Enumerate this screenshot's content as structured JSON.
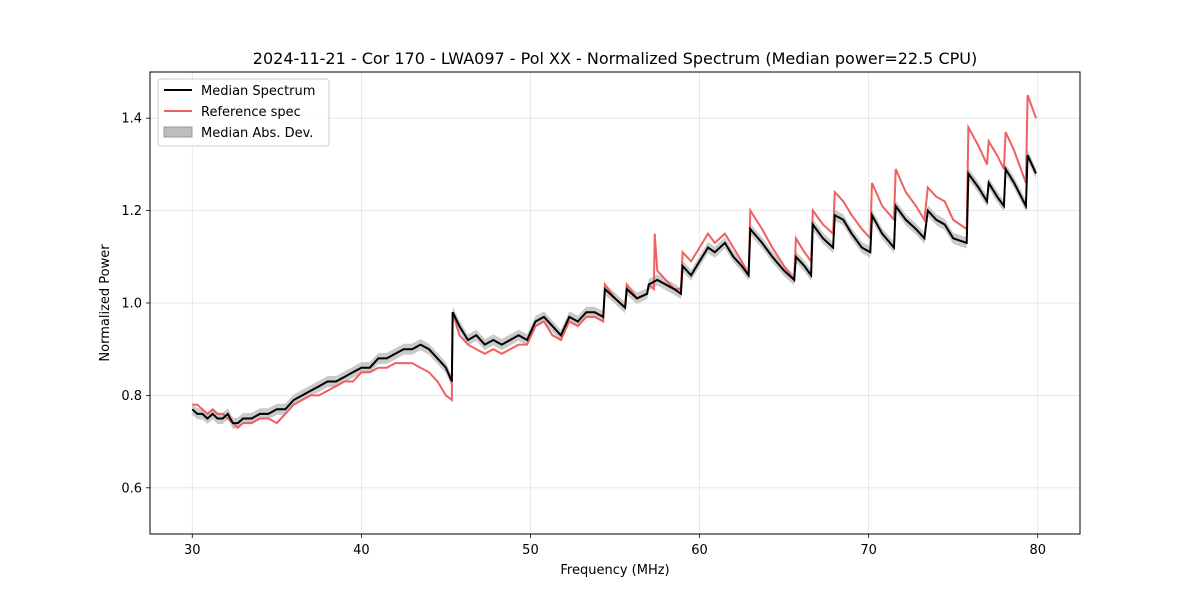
{
  "chart_data": {
    "type": "line",
    "title": "2024-11-21 - Cor 170 - LWA097 - Pol XX - Normalized Spectrum (Median power=22.5 CPU)",
    "xlabel": "Frequency (MHz)",
    "ylabel": "Normalized Power",
    "xlim": [
      27.5,
      82.5
    ],
    "ylim": [
      0.5,
      1.5
    ],
    "xticks": [
      30,
      40,
      50,
      60,
      70,
      80
    ],
    "yticks": [
      0.6,
      0.8,
      1.0,
      1.2,
      1.4
    ],
    "xtick_labels": [
      "30",
      "40",
      "50",
      "60",
      "70",
      "80"
    ],
    "ytick_labels": [
      "0.6",
      "0.8",
      "1.0",
      "1.2",
      "1.4"
    ],
    "grid": true,
    "legend": {
      "position": "top-left",
      "entries": [
        "Median Spectrum",
        "Reference spec",
        "Median Abs. Dev."
      ]
    },
    "colors": {
      "median": "#000000",
      "reference": "#f06060",
      "mad": "#bdbdbd"
    },
    "series": [
      {
        "name": "Median Spectrum",
        "x": [
          30.0,
          30.3,
          30.6,
          30.9,
          31.2,
          31.5,
          31.8,
          32.1,
          32.4,
          32.7,
          33.0,
          33.5,
          34.0,
          34.5,
          35.0,
          35.5,
          36.0,
          36.5,
          37.0,
          37.5,
          38.0,
          38.5,
          39.0,
          39.5,
          40.0,
          40.5,
          41.0,
          41.5,
          42.0,
          42.5,
          43.0,
          43.5,
          44.0,
          44.5,
          45.0,
          45.35,
          45.4,
          45.8,
          46.3,
          46.8,
          47.3,
          47.8,
          48.3,
          48.8,
          49.3,
          49.8,
          50.3,
          50.8,
          51.3,
          51.8,
          52.3,
          52.8,
          53.3,
          53.8,
          54.3,
          54.4,
          55.0,
          55.6,
          55.7,
          56.3,
          56.9,
          57.0,
          57.5,
          58.0,
          58.5,
          58.9,
          59.0,
          59.5,
          60.0,
          60.5,
          60.9,
          61.5,
          62.0,
          62.5,
          62.9,
          63.0,
          63.7,
          64.3,
          65.0,
          65.6,
          65.7,
          66.2,
          66.6,
          66.7,
          67.3,
          67.9,
          68.0,
          68.5,
          69.0,
          69.6,
          70.1,
          70.2,
          70.8,
          71.5,
          71.6,
          72.2,
          72.8,
          73.3,
          73.5,
          74.0,
          74.5,
          75.0,
          75.8,
          75.9,
          76.5,
          77.0,
          77.1,
          77.6,
          78.0,
          78.1,
          78.6,
          79.3,
          79.4,
          79.9
        ],
        "values": [
          0.77,
          0.76,
          0.76,
          0.75,
          0.76,
          0.75,
          0.75,
          0.76,
          0.74,
          0.74,
          0.75,
          0.75,
          0.76,
          0.76,
          0.77,
          0.77,
          0.79,
          0.8,
          0.81,
          0.82,
          0.83,
          0.83,
          0.84,
          0.85,
          0.86,
          0.86,
          0.88,
          0.88,
          0.89,
          0.9,
          0.9,
          0.91,
          0.9,
          0.88,
          0.86,
          0.83,
          0.98,
          0.95,
          0.92,
          0.93,
          0.91,
          0.92,
          0.91,
          0.92,
          0.93,
          0.92,
          0.96,
          0.97,
          0.95,
          0.93,
          0.97,
          0.96,
          0.98,
          0.98,
          0.97,
          1.03,
          1.01,
          0.99,
          1.03,
          1.01,
          1.02,
          1.04,
          1.05,
          1.04,
          1.03,
          1.02,
          1.08,
          1.06,
          1.09,
          1.12,
          1.11,
          1.13,
          1.1,
          1.08,
          1.06,
          1.16,
          1.13,
          1.1,
          1.07,
          1.05,
          1.1,
          1.08,
          1.06,
          1.17,
          1.14,
          1.12,
          1.19,
          1.18,
          1.15,
          1.12,
          1.11,
          1.19,
          1.15,
          1.12,
          1.21,
          1.18,
          1.16,
          1.14,
          1.2,
          1.18,
          1.17,
          1.14,
          1.13,
          1.28,
          1.25,
          1.22,
          1.26,
          1.23,
          1.21,
          1.29,
          1.26,
          1.21,
          1.32,
          1.28
        ]
      },
      {
        "name": "Reference spec",
        "x": [
          30.0,
          30.3,
          30.6,
          30.9,
          31.2,
          31.5,
          31.8,
          32.1,
          32.4,
          32.7,
          33.0,
          33.5,
          34.0,
          34.5,
          35.0,
          35.5,
          36.0,
          36.5,
          37.0,
          37.5,
          38.0,
          38.5,
          39.0,
          39.5,
          40.0,
          40.5,
          41.0,
          41.5,
          42.0,
          42.5,
          43.0,
          43.5,
          44.0,
          44.5,
          45.0,
          45.35,
          45.4,
          45.8,
          46.3,
          46.8,
          47.3,
          47.8,
          48.3,
          48.8,
          49.3,
          49.8,
          50.3,
          50.8,
          51.3,
          51.8,
          52.3,
          52.8,
          53.3,
          53.8,
          54.3,
          54.4,
          55.0,
          55.6,
          55.7,
          56.3,
          56.9,
          57.0,
          57.3,
          57.35,
          57.5,
          58.0,
          58.5,
          58.9,
          59.0,
          59.5,
          60.0,
          60.5,
          60.9,
          61.5,
          62.0,
          62.5,
          62.9,
          63.0,
          63.7,
          64.3,
          65.0,
          65.6,
          65.7,
          66.2,
          66.6,
          66.7,
          67.3,
          67.9,
          68.0,
          68.5,
          69.0,
          69.6,
          70.1,
          70.2,
          70.8,
          71.5,
          71.6,
          72.2,
          72.8,
          73.3,
          73.5,
          74.0,
          74.5,
          75.0,
          75.8,
          75.9,
          76.5,
          77.0,
          77.1,
          77.6,
          78.0,
          78.1,
          78.6,
          79.3,
          79.4,
          79.9
        ],
        "values": [
          0.78,
          0.78,
          0.77,
          0.76,
          0.77,
          0.76,
          0.76,
          0.75,
          0.74,
          0.73,
          0.74,
          0.74,
          0.75,
          0.75,
          0.74,
          0.76,
          0.78,
          0.79,
          0.8,
          0.8,
          0.81,
          0.82,
          0.83,
          0.83,
          0.85,
          0.85,
          0.86,
          0.86,
          0.87,
          0.87,
          0.87,
          0.86,
          0.85,
          0.83,
          0.8,
          0.79,
          0.98,
          0.93,
          0.91,
          0.9,
          0.89,
          0.9,
          0.89,
          0.9,
          0.91,
          0.91,
          0.95,
          0.96,
          0.93,
          0.92,
          0.96,
          0.95,
          0.97,
          0.97,
          0.96,
          1.04,
          1.01,
          0.99,
          1.04,
          1.01,
          1.02,
          1.04,
          1.03,
          1.15,
          1.07,
          1.05,
          1.03,
          1.03,
          1.11,
          1.09,
          1.12,
          1.15,
          1.13,
          1.15,
          1.12,
          1.09,
          1.06,
          1.2,
          1.16,
          1.12,
          1.08,
          1.05,
          1.14,
          1.11,
          1.09,
          1.2,
          1.17,
          1.15,
          1.24,
          1.22,
          1.19,
          1.16,
          1.14,
          1.26,
          1.21,
          1.18,
          1.29,
          1.24,
          1.21,
          1.18,
          1.25,
          1.23,
          1.22,
          1.18,
          1.16,
          1.38,
          1.34,
          1.3,
          1.35,
          1.32,
          1.29,
          1.37,
          1.33,
          1.26,
          1.45,
          1.4
        ]
      },
      {
        "name": "Median Abs. Dev.",
        "type": "band",
        "half_width": 0.012
      }
    ]
  }
}
